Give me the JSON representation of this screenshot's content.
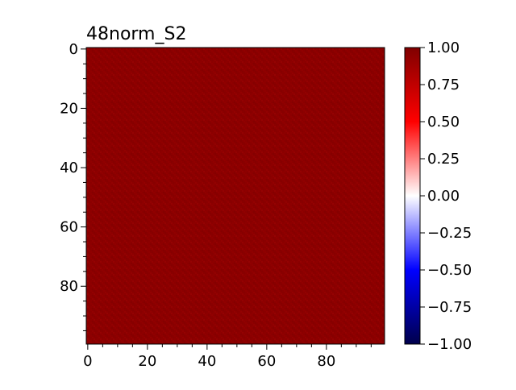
{
  "chart_data": {
    "type": "heatmap",
    "title": "48norm_S2",
    "xlabel": "",
    "ylabel": "",
    "x_ticks": [
      0,
      20,
      40,
      60,
      80
    ],
    "y_ticks": [
      0,
      20,
      40,
      60,
      80
    ],
    "x_range": [
      0,
      99
    ],
    "y_range": [
      0,
      99
    ],
    "y_inverted": true,
    "n_rows": 100,
    "n_cols": 100,
    "value_estimate": 0.93,
    "colorbar": {
      "colormap": "seismic",
      "range": [
        -1.0,
        1.0
      ],
      "ticks": [
        1.0,
        0.75,
        0.5,
        0.25,
        0.0,
        -0.25,
        -0.5,
        -0.75,
        -1.0
      ],
      "tick_labels": [
        "1.00",
        "0.75",
        "0.50",
        "0.25",
        "0.00",
        "−0.25",
        "−0.50",
        "−0.75",
        "−1.00"
      ]
    },
    "colors": {
      "cell_base": "#8b0000",
      "colormap_stops": [
        "#00004c",
        "#0000ff",
        "#ffffff",
        "#ff0000",
        "#800000"
      ]
    },
    "grid": false,
    "legend": "none"
  }
}
